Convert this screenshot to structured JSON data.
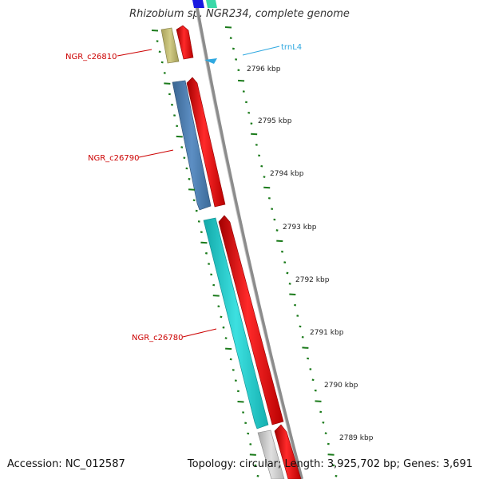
{
  "title": "Rhizobium sp. NGR234, complete genome",
  "footer": {
    "accession": "Accession: NC_012587",
    "topology": "Topology: circular; Length: 3,925,702 bp; Genes: 3,691"
  },
  "colors": {
    "label_red": "#cc0000",
    "label_blue": "#2fa8e0",
    "tick_green": "#1a7a1a",
    "backbone": "#8c8c8c"
  },
  "ruler": {
    "unit": "kbp",
    "labels": [
      "2796 kbp",
      "2795 kbp",
      "2794 kbp",
      "2793 kbp",
      "2792 kbp",
      "2791 kbp",
      "2790 kbp",
      "2789 kbp"
    ]
  },
  "features": [
    {
      "id": "NGR_c26810",
      "label": "NGR_c26810",
      "color": "#c2bb72"
    },
    {
      "id": "NGR_c26790",
      "label": "NGR_c26790",
      "color": "#4f81b4"
    },
    {
      "id": "NGR_c26780",
      "label": "NGR_c26780",
      "color": "#22c7c7"
    },
    {
      "id": "trnL4",
      "label": "trnL4",
      "color": "#2fa8e0"
    }
  ]
}
